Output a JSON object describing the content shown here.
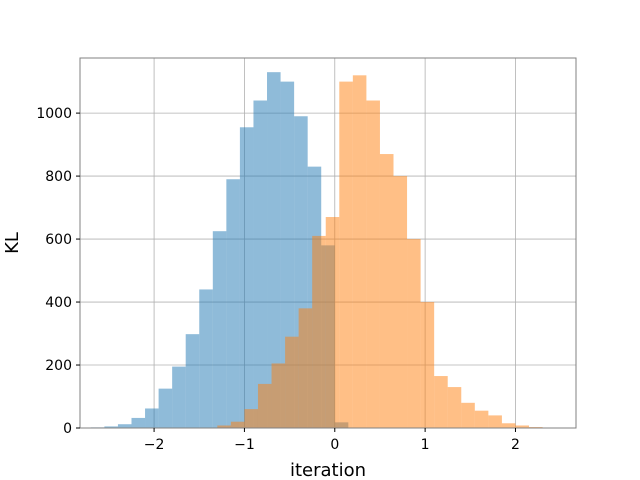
{
  "chart_data": {
    "type": "histogram",
    "title": "",
    "xlabel": "iteration",
    "ylabel": "KL",
    "xlim": [
      -2.82,
      2.67
    ],
    "ylim": [
      0,
      1175
    ],
    "xticks": [
      -2,
      -1,
      0,
      1,
      2
    ],
    "xtick_labels": [
      "−2",
      "−1",
      "0",
      "1",
      "2"
    ],
    "yticks": [
      0,
      200,
      400,
      600,
      800,
      1000
    ],
    "ytick_labels": [
      "0",
      "200",
      "400",
      "600",
      "800",
      "1000"
    ],
    "grid": true,
    "legend": false,
    "series": [
      {
        "color": "#1f77b4",
        "alpha": 0.5,
        "bin_edges": [
          -2.7,
          -2.55,
          -2.4,
          -2.25,
          -2.1,
          -1.95,
          -1.8,
          -1.65,
          -1.5,
          -1.35,
          -1.2,
          -1.05,
          -0.9,
          -0.75,
          -0.6,
          -0.45,
          -0.3,
          -0.15,
          0.0,
          0.15
        ],
        "counts": [
          2,
          5,
          12,
          32,
          62,
          125,
          195,
          298,
          440,
          625,
          790,
          955,
          1040,
          1130,
          1100,
          990,
          830,
          580,
          18
        ]
      },
      {
        "color": "#ff7f0e",
        "alpha": 0.5,
        "bin_edges": [
          -1.3,
          -1.15,
          -1.0,
          -0.85,
          -0.7,
          -0.55,
          -0.4,
          -0.25,
          -0.1,
          0.05,
          0.2,
          0.35,
          0.5,
          0.65,
          0.8,
          0.95,
          1.1,
          1.25,
          1.4,
          1.55,
          1.7,
          1.85,
          2.0,
          2.15,
          2.3
        ],
        "counts": [
          8,
          20,
          60,
          140,
          205,
          290,
          380,
          610,
          670,
          1100,
          1120,
          1040,
          870,
          800,
          600,
          400,
          165,
          130,
          80,
          55,
          40,
          15,
          8,
          3
        ]
      }
    ]
  }
}
